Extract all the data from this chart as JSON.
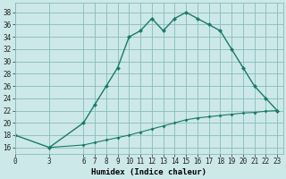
{
  "xlabel": "Humidex (Indice chaleur)",
  "bg_color": "#cce8e8",
  "grid_color": "#88bbbb",
  "line_color": "#1a7a6a",
  "xlim": [
    0,
    23.5
  ],
  "ylim": [
    15,
    39.5
  ],
  "yticks": [
    16,
    18,
    20,
    22,
    24,
    26,
    28,
    30,
    32,
    34,
    36,
    38
  ],
  "xticks": [
    0,
    3,
    6,
    7,
    8,
    9,
    10,
    11,
    12,
    13,
    14,
    15,
    16,
    17,
    18,
    19,
    20,
    21,
    22,
    23
  ],
  "curve1_x": [
    0,
    3,
    6,
    7,
    8,
    9,
    10,
    11,
    12,
    13,
    14,
    15,
    16,
    17,
    18,
    19,
    20,
    21,
    22,
    23
  ],
  "curve1_y": [
    18,
    16,
    20,
    23,
    26,
    29,
    34,
    35,
    37,
    35,
    37,
    38,
    37,
    36,
    35,
    32,
    29,
    26,
    24,
    22
  ],
  "curve2_x": [
    3,
    6,
    7,
    8,
    9,
    10,
    11,
    12,
    13,
    14,
    15,
    16,
    17,
    18,
    19,
    20,
    21,
    22,
    23
  ],
  "curve2_y": [
    16,
    16.4,
    16.8,
    17.2,
    17.6,
    18.0,
    18.5,
    19.0,
    19.5,
    20.0,
    20.5,
    20.8,
    21.0,
    21.2,
    21.4,
    21.6,
    21.7,
    21.9,
    22.0
  ],
  "tick_fontsize": 5.5,
  "xlabel_fontsize": 6.5
}
